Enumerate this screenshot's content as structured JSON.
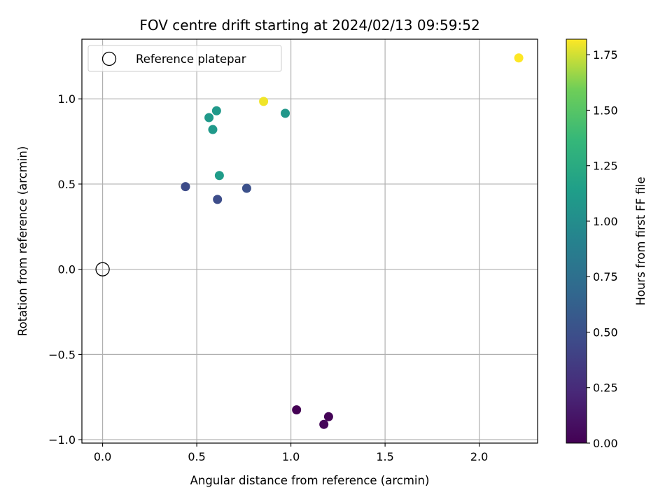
{
  "chart_data": {
    "type": "scatter",
    "title": "FOV centre drift starting at 2024/02/13 09:59:52",
    "xlabel": "Angular distance from reference (arcmin)",
    "ylabel": "Rotation from reference (arcmin)",
    "xlim": [
      -0.11,
      2.31
    ],
    "ylim": [
      -1.02,
      1.35
    ],
    "xticks": [
      0.0,
      0.5,
      1.0,
      1.5,
      2.0
    ],
    "xtick_labels": [
      "0.0",
      "0.5",
      "1.0",
      "1.5",
      "2.0"
    ],
    "yticks": [
      -1.0,
      -0.5,
      0.0,
      0.5,
      1.0
    ],
    "ytick_labels": [
      "−1.0",
      "−0.5",
      "0.0",
      "0.5",
      "1.0"
    ],
    "grid": true,
    "legend": {
      "location": "upper-left",
      "entries": [
        {
          "label": "Reference platepar",
          "marker": "open-circle"
        }
      ]
    },
    "reference_point": {
      "x": 0.0,
      "y": 0.0
    },
    "colormap": "viridis",
    "colorbar": {
      "label": "Hours from first FF file",
      "range": [
        0.0,
        1.82
      ],
      "ticks": [
        0.0,
        0.25,
        0.5,
        0.75,
        1.0,
        1.25,
        1.5,
        1.75
      ],
      "tick_labels": [
        "0.00",
        "0.25",
        "0.50",
        "0.75",
        "1.00",
        "1.25",
        "1.50",
        "1.75"
      ]
    },
    "points": [
      {
        "x": 1.03,
        "y": -0.825,
        "hours": 0.0
      },
      {
        "x": 1.2,
        "y": -0.865,
        "hours": 0.02
      },
      {
        "x": 1.175,
        "y": -0.91,
        "hours": 0.03
      },
      {
        "x": 0.44,
        "y": 0.485,
        "hours": 0.47
      },
      {
        "x": 0.61,
        "y": 0.41,
        "hours": 0.48
      },
      {
        "x": 0.765,
        "y": 0.475,
        "hours": 0.5
      },
      {
        "x": 0.565,
        "y": 0.89,
        "hours": 1.1
      },
      {
        "x": 0.605,
        "y": 0.93,
        "hours": 1.1
      },
      {
        "x": 0.585,
        "y": 0.82,
        "hours": 1.1
      },
      {
        "x": 0.62,
        "y": 0.55,
        "hours": 1.12
      },
      {
        "x": 0.97,
        "y": 0.915,
        "hours": 1.08
      },
      {
        "x": 0.855,
        "y": 0.985,
        "hours": 1.8
      },
      {
        "x": 2.21,
        "y": 1.24,
        "hours": 1.82
      }
    ]
  }
}
